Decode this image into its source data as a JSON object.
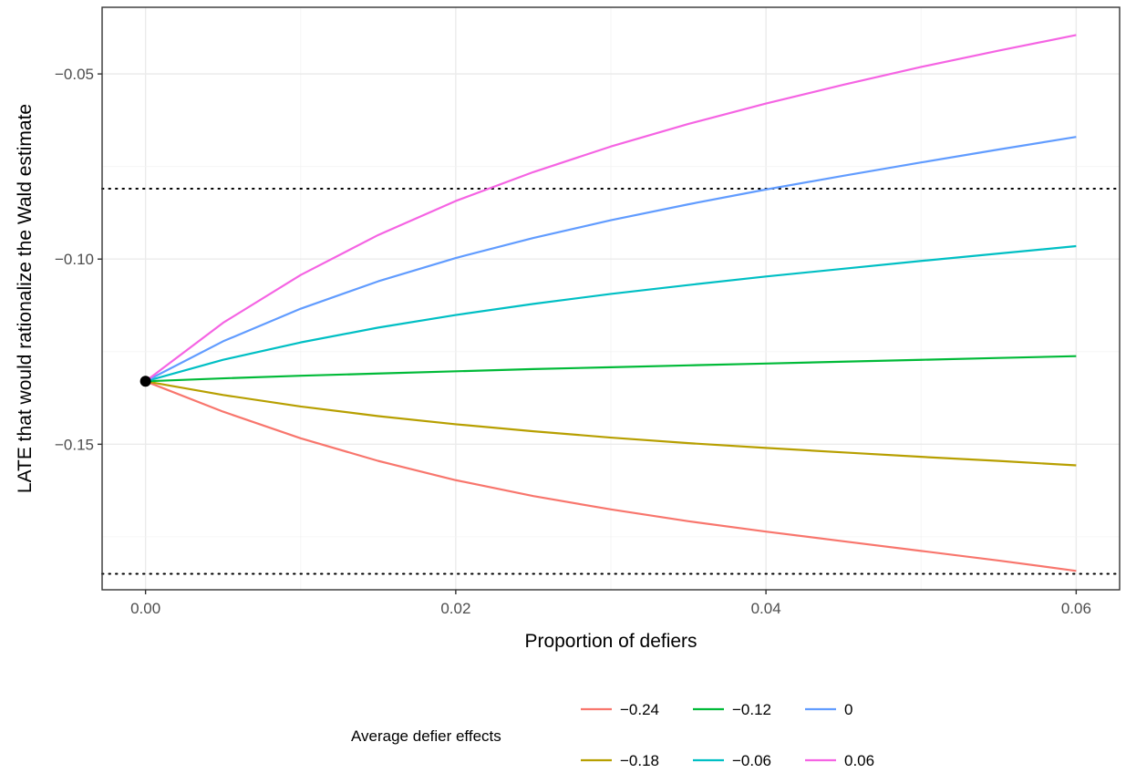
{
  "chart_data": {
    "type": "line",
    "xlabel": "Proportion of defiers",
    "ylabel": "LATE that would rationalize the Wald estimate",
    "xlim": [
      -0.0028,
      0.0628
    ],
    "ylim": [
      -0.1893,
      -0.032
    ],
    "x_ticks": [
      0.0,
      0.02,
      0.04,
      0.06
    ],
    "x_tick_labels": [
      "0.00",
      "0.02",
      "0.04",
      "0.06"
    ],
    "y_ticks": [
      -0.15,
      -0.1,
      -0.05
    ],
    "y_tick_labels": [
      "−0.15",
      "−0.10",
      "−0.05"
    ],
    "grid": true,
    "x": [
      0.0,
      0.005,
      0.01,
      0.015,
      0.02,
      0.025,
      0.03,
      0.035,
      0.04,
      0.045,
      0.05,
      0.055,
      0.06
    ],
    "series": [
      {
        "name": "−0.24",
        "color": "#F8766D",
        "values": [
          -0.133,
          -0.1412,
          -0.1484,
          -0.1545,
          -0.1597,
          -0.164,
          -0.1676,
          -0.1708,
          -0.1736,
          -0.1762,
          -0.1788,
          -0.1814,
          -0.1842
        ]
      },
      {
        "name": "−0.18",
        "color": "#B79F00",
        "values": [
          -0.133,
          -0.1367,
          -0.1398,
          -0.1424,
          -0.1446,
          -0.1465,
          -0.1482,
          -0.1497,
          -0.151,
          -0.1522,
          -0.1534,
          -0.1545,
          -0.1557
        ]
      },
      {
        "name": "−0.12",
        "color": "#00BA38",
        "values": [
          -0.133,
          -0.1322,
          -0.1315,
          -0.1309,
          -0.1303,
          -0.1297,
          -0.1292,
          -0.1287,
          -0.1282,
          -0.1277,
          -0.1272,
          -0.1267,
          -0.1262
        ]
      },
      {
        "name": "−0.06",
        "color": "#00BFC4",
        "values": [
          -0.133,
          -0.1272,
          -0.1225,
          -0.1185,
          -0.1151,
          -0.1121,
          -0.1094,
          -0.107,
          -0.1047,
          -0.1026,
          -0.1005,
          -0.0985,
          -0.0965
        ]
      },
      {
        "name": "0",
        "color": "#619CFF",
        "values": [
          -0.133,
          -0.1222,
          -0.1134,
          -0.106,
          -0.0997,
          -0.0943,
          -0.0895,
          -0.0852,
          -0.0812,
          -0.0775,
          -0.0739,
          -0.0704,
          -0.067
        ]
      },
      {
        "name": "0.06",
        "color": "#F564E3",
        "values": [
          -0.133,
          -0.1172,
          -0.1043,
          -0.0935,
          -0.0843,
          -0.0765,
          -0.0696,
          -0.0635,
          -0.058,
          -0.0529,
          -0.0481,
          -0.0437,
          -0.0395
        ]
      }
    ],
    "start_point": {
      "x": 0.0,
      "y": -0.133
    },
    "reference_lines_y": [
      -0.081,
      -0.185
    ],
    "legend": {
      "title": "Average defier effects",
      "position": "bottom",
      "order": [
        "−0.24",
        "−0.12",
        "0",
        "−0.18",
        "−0.06",
        "0.06"
      ]
    }
  }
}
